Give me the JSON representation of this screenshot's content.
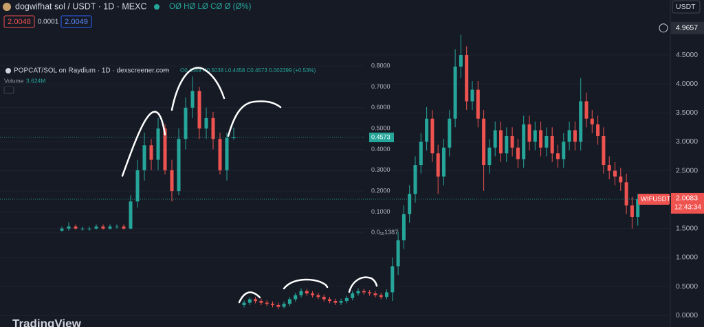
{
  "chart_data": [
    {
      "type": "candlestick",
      "title": "dogwifhat sol / USDT · 1D · MEXC",
      "legend_text": "OØ HØ LØ CØ Ø (Ø%)",
      "up_color": "#26a69a",
      "down_color": "#ef5350",
      "ylim": [
        -0.2,
        5.45
      ],
      "yticks": [
        {
          "value": 0,
          "label": "0.0000"
        },
        {
          "value": 0.5,
          "label": "0.5000"
        },
        {
          "value": 1,
          "label": "1.0000"
        },
        {
          "value": 1.5,
          "label": "1.5000"
        },
        {
          "value": 2.5,
          "label": "2.5000"
        },
        {
          "value": 3,
          "label": "3.0000"
        },
        {
          "value": 3.5,
          "label": "3.5000"
        },
        {
          "value": 4,
          "label": "4.0000"
        },
        {
          "value": 4.5,
          "label": "4.5000"
        }
      ],
      "crosshair": 4.9657,
      "open": [
        0.18,
        0.22,
        0.28,
        0.25,
        0.22,
        0.2,
        0.18,
        0.15,
        0.2,
        0.28,
        0.35,
        0.42,
        0.38,
        0.35,
        0.32,
        0.28,
        0.25,
        0.22,
        0.25,
        0.3,
        0.38,
        0.42,
        0.4,
        0.38,
        0.35,
        0.32,
        0.4,
        0.85,
        1.3,
        1.75,
        2.1,
        2.6,
        3.0,
        3.4,
        2.8,
        2.4,
        2.9,
        3.4,
        4.3,
        4.5,
        3.7,
        3.9,
        3.4,
        2.6,
        2.9,
        3.2,
        2.8,
        3.1,
        2.9,
        2.7,
        3.3,
        3.0,
        3.2,
        2.9,
        3.1,
        2.8,
        2.7,
        3.0,
        3.2,
        3.0,
        3.7,
        3.4,
        3.3,
        3.1,
        2.6,
        2.5,
        2.4,
        2.3,
        1.9,
        1.7
      ],
      "high": [
        0.26,
        0.32,
        0.32,
        0.29,
        0.26,
        0.24,
        0.22,
        0.24,
        0.32,
        0.39,
        0.47,
        0.46,
        0.42,
        0.39,
        0.36,
        0.32,
        0.29,
        0.29,
        0.34,
        0.42,
        0.47,
        0.46,
        0.44,
        0.42,
        0.39,
        0.45,
        1.0,
        1.45,
        1.9,
        2.25,
        2.75,
        3.15,
        3.6,
        3.55,
        2.95,
        3.05,
        3.55,
        4.6,
        4.85,
        4.65,
        4.05,
        4.05,
        3.55,
        3.05,
        3.35,
        3.35,
        3.25,
        3.25,
        3.05,
        3.45,
        3.45,
        3.35,
        3.35,
        3.25,
        3.25,
        2.95,
        3.15,
        3.35,
        3.35,
        4.1,
        3.85,
        3.55,
        3.45,
        3.25,
        2.75,
        2.65,
        2.55,
        2.45,
        2.05,
        2.1
      ],
      "low": [
        0.14,
        0.18,
        0.21,
        0.18,
        0.16,
        0.14,
        0.11,
        0.12,
        0.16,
        0.24,
        0.31,
        0.34,
        0.31,
        0.28,
        0.24,
        0.21,
        0.18,
        0.18,
        0.21,
        0.26,
        0.34,
        0.36,
        0.34,
        0.31,
        0.28,
        0.28,
        0.25,
        0.7,
        1.15,
        1.6,
        1.95,
        2.45,
        2.85,
        2.65,
        2.1,
        2.25,
        2.75,
        3.25,
        4.1,
        3.55,
        3.55,
        3.25,
        2.15,
        2.45,
        2.75,
        2.65,
        2.65,
        2.75,
        2.55,
        2.55,
        2.85,
        2.85,
        2.75,
        2.75,
        2.65,
        2.55,
        2.55,
        2.85,
        2.85,
        2.85,
        3.25,
        3.15,
        2.95,
        2.45,
        2.35,
        2.25,
        2.15,
        1.75,
        1.5,
        1.55
      ],
      "close": [
        0.22,
        0.28,
        0.25,
        0.22,
        0.2,
        0.18,
        0.15,
        0.2,
        0.28,
        0.35,
        0.42,
        0.38,
        0.35,
        0.32,
        0.28,
        0.25,
        0.22,
        0.25,
        0.3,
        0.38,
        0.42,
        0.4,
        0.38,
        0.35,
        0.32,
        0.4,
        0.85,
        1.3,
        1.75,
        2.1,
        2.6,
        3.0,
        3.4,
        2.8,
        2.4,
        2.9,
        3.4,
        4.3,
        4.5,
        3.7,
        3.9,
        3.4,
        2.6,
        2.9,
        3.2,
        2.8,
        3.1,
        2.9,
        2.7,
        3.3,
        3.0,
        3.2,
        2.9,
        3.1,
        2.8,
        2.7,
        3.0,
        3.2,
        3.0,
        3.7,
        3.4,
        3.3,
        3.1,
        2.6,
        2.5,
        2.4,
        2.3,
        1.9,
        1.7,
        2.0083
      ]
    },
    {
      "type": "candlestick",
      "title": "POPCAT/SOL on Raydium · 1D · dexscreener.com",
      "legend_text": "O0.4549 H0.5038 L0.4458 C0.4573 0.002399 (+0.53%)",
      "volume_label": "Volume",
      "volume_value": "3.624M",
      "up_color": "#26a69a",
      "down_color": "#ef5350",
      "ylim": [
        -0.07,
        0.82
      ],
      "yticks": [
        {
          "value": 0,
          "label": "0.0₁₅1387"
        },
        {
          "value": 0.1,
          "label": "0.1000"
        },
        {
          "value": 0.2,
          "label": "0.2000"
        },
        {
          "value": 0.3,
          "label": "0.3000"
        },
        {
          "value": 0.4,
          "label": "0.4000"
        },
        {
          "value": 0.5,
          "label": "0.5000"
        },
        {
          "value": 0.6,
          "label": "0.6000"
        },
        {
          "value": 0.7,
          "label": "0.7000"
        },
        {
          "value": 0.8,
          "label": "0.8000"
        }
      ],
      "open": [
        0.01,
        0.02,
        0.03,
        0.02,
        0.02,
        0.02,
        0.03,
        0.02,
        0.03,
        0.03,
        0.02,
        0.15,
        0.3,
        0.42,
        0.35,
        0.5,
        0.3,
        0.2,
        0.45,
        0.6,
        0.68,
        0.5,
        0.55,
        0.45,
        0.3,
        0.4549
      ],
      "high": [
        0.03,
        0.05,
        0.04,
        0.03,
        0.03,
        0.04,
        0.04,
        0.04,
        0.04,
        0.04,
        0.18,
        0.35,
        0.48,
        0.45,
        0.55,
        0.52,
        0.35,
        0.5,
        0.65,
        0.75,
        0.7,
        0.6,
        0.58,
        0.48,
        0.48,
        0.5038
      ],
      "low": [
        0.005,
        0.01,
        0.015,
        0.01,
        0.01,
        0.015,
        0.015,
        0.015,
        0.02,
        0.015,
        0.015,
        0.12,
        0.25,
        0.3,
        0.3,
        0.28,
        0.15,
        0.18,
        0.4,
        0.55,
        0.45,
        0.45,
        0.4,
        0.28,
        0.25,
        0.4458
      ],
      "close": [
        0.02,
        0.03,
        0.02,
        0.02,
        0.02,
        0.03,
        0.02,
        0.03,
        0.03,
        0.02,
        0.15,
        0.3,
        0.42,
        0.35,
        0.5,
        0.3,
        0.2,
        0.45,
        0.6,
        0.68,
        0.5,
        0.55,
        0.45,
        0.3,
        0.4549,
        0.4573
      ]
    }
  ],
  "ui": {
    "currency": "USDT",
    "bid": "2.0048",
    "spread": "0.0001",
    "ask": "2.0049",
    "symbol_tag": "WIFUSDT",
    "countdown": "12:43:34",
    "brand": "TradingView"
  }
}
